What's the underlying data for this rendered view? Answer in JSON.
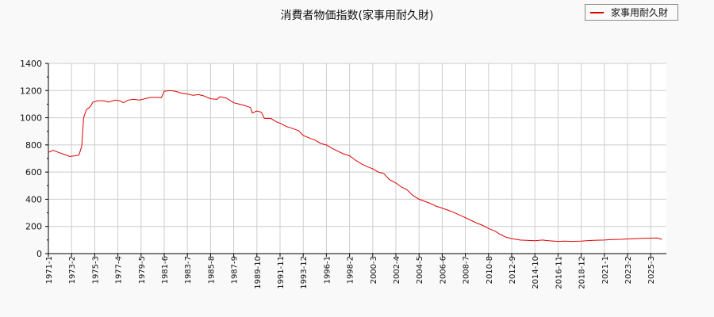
{
  "chart_data": {
    "type": "line",
    "title": "消費者物価指数(家事用耐久財)",
    "xlabel": "",
    "ylabel": "",
    "ylim": [
      0,
      1400
    ],
    "yticks": [
      0,
      200,
      400,
      600,
      800,
      1000,
      1200,
      1400
    ],
    "grid": true,
    "legend_position": "top-right",
    "x_tick_labels": [
      "1971-1",
      "1973-2",
      "1975-3",
      "1977-4",
      "1979-5",
      "1981-6",
      "1983-7",
      "1985-8",
      "1987-9",
      "1989-10",
      "1991-11",
      "1993-12",
      "1996-1",
      "1998-2",
      "2000-3",
      "2002-4",
      "2004-5",
      "2006-6",
      "2008-7",
      "2010-8",
      "2012-9",
      "2014-10",
      "2016-11",
      "2018-12",
      "2021-1",
      "2023-2",
      "2025-3"
    ],
    "series": [
      {
        "name": "家事用耐久財",
        "color": "#dd0000",
        "points": [
          [
            "1971-1",
            745
          ],
          [
            "1971-6",
            760
          ],
          [
            "1971-12",
            745
          ],
          [
            "1972-6",
            730
          ],
          [
            "1972-12",
            715
          ],
          [
            "1973-6",
            720
          ],
          [
            "1973-10",
            725
          ],
          [
            "1974-1",
            790
          ],
          [
            "1974-3",
            1000
          ],
          [
            "1974-6",
            1060
          ],
          [
            "1974-10",
            1080
          ],
          [
            "1975-1",
            1115
          ],
          [
            "1975-6",
            1125
          ],
          [
            "1976-1",
            1125
          ],
          [
            "1976-6",
            1115
          ],
          [
            "1977-1",
            1130
          ],
          [
            "1977-6",
            1125
          ],
          [
            "1977-10",
            1110
          ],
          [
            "1978-3",
            1130
          ],
          [
            "1978-9",
            1135
          ],
          [
            "1979-3",
            1130
          ],
          [
            "1979-9",
            1140
          ],
          [
            "1980-3",
            1150
          ],
          [
            "1980-9",
            1150
          ],
          [
            "1981-3",
            1148
          ],
          [
            "1981-6",
            1195
          ],
          [
            "1981-12",
            1200
          ],
          [
            "1982-6",
            1195
          ],
          [
            "1983-1",
            1180
          ],
          [
            "1983-7",
            1175
          ],
          [
            "1984-1",
            1165
          ],
          [
            "1984-7",
            1170
          ],
          [
            "1985-1",
            1160
          ],
          [
            "1985-8",
            1140
          ],
          [
            "1986-3",
            1135
          ],
          [
            "1986-6",
            1155
          ],
          [
            "1987-1",
            1145
          ],
          [
            "1987-9",
            1110
          ],
          [
            "1988-3",
            1100
          ],
          [
            "1988-9",
            1090
          ],
          [
            "1989-3",
            1075
          ],
          [
            "1989-5",
            1035
          ],
          [
            "1989-10",
            1050
          ],
          [
            "1990-3",
            1040
          ],
          [
            "1990-6",
            995
          ],
          [
            "1991-1",
            995
          ],
          [
            "1991-7",
            970
          ],
          [
            "1991-11",
            960
          ],
          [
            "1992-6",
            935
          ],
          [
            "1993-1",
            920
          ],
          [
            "1993-7",
            905
          ],
          [
            "1993-12",
            870
          ],
          [
            "1994-7",
            850
          ],
          [
            "1995-1",
            835
          ],
          [
            "1995-7",
            810
          ],
          [
            "1996-1",
            800
          ],
          [
            "1996-7",
            775
          ],
          [
            "1997-1",
            755
          ],
          [
            "1997-7",
            735
          ],
          [
            "1998-2",
            720
          ],
          [
            "1998-9",
            685
          ],
          [
            "1999-3",
            660
          ],
          [
            "1999-9",
            640
          ],
          [
            "2000-3",
            625
          ],
          [
            "2000-9",
            600
          ],
          [
            "2001-3",
            590
          ],
          [
            "2001-9",
            545
          ],
          [
            "2002-4",
            520
          ],
          [
            "2002-10",
            490
          ],
          [
            "2003-4",
            470
          ],
          [
            "2003-10",
            430
          ],
          [
            "2004-5",
            400
          ],
          [
            "2004-11",
            385
          ],
          [
            "2005-5",
            370
          ],
          [
            "2005-11",
            350
          ],
          [
            "2006-6",
            335
          ],
          [
            "2006-12",
            320
          ],
          [
            "2007-6",
            305
          ],
          [
            "2007-12",
            285
          ],
          [
            "2008-7",
            265
          ],
          [
            "2009-1",
            245
          ],
          [
            "2009-7",
            225
          ],
          [
            "2010-1",
            210
          ],
          [
            "2010-8",
            185
          ],
          [
            "2011-3",
            165
          ],
          [
            "2011-9",
            140
          ],
          [
            "2012-3",
            120
          ],
          [
            "2012-9",
            110
          ],
          [
            "2013-6",
            100
          ],
          [
            "2014-1",
            98
          ],
          [
            "2014-10",
            95
          ],
          [
            "2015-6",
            100
          ],
          [
            "2016-1",
            95
          ],
          [
            "2016-11",
            90
          ],
          [
            "2017-6",
            92
          ],
          [
            "2018-1",
            90
          ],
          [
            "2018-12",
            92
          ],
          [
            "2019-6",
            95
          ],
          [
            "2020-1",
            98
          ],
          [
            "2021-1",
            100
          ],
          [
            "2021-9",
            103
          ],
          [
            "2022-6",
            105
          ],
          [
            "2023-2",
            108
          ],
          [
            "2023-10",
            110
          ],
          [
            "2024-6",
            112
          ],
          [
            "2025-3",
            114
          ],
          [
            "2025-10",
            115
          ],
          [
            "2026-3",
            105
          ]
        ]
      }
    ]
  },
  "legend": {
    "label": "家事用耐久財",
    "color": "#dd0000"
  }
}
